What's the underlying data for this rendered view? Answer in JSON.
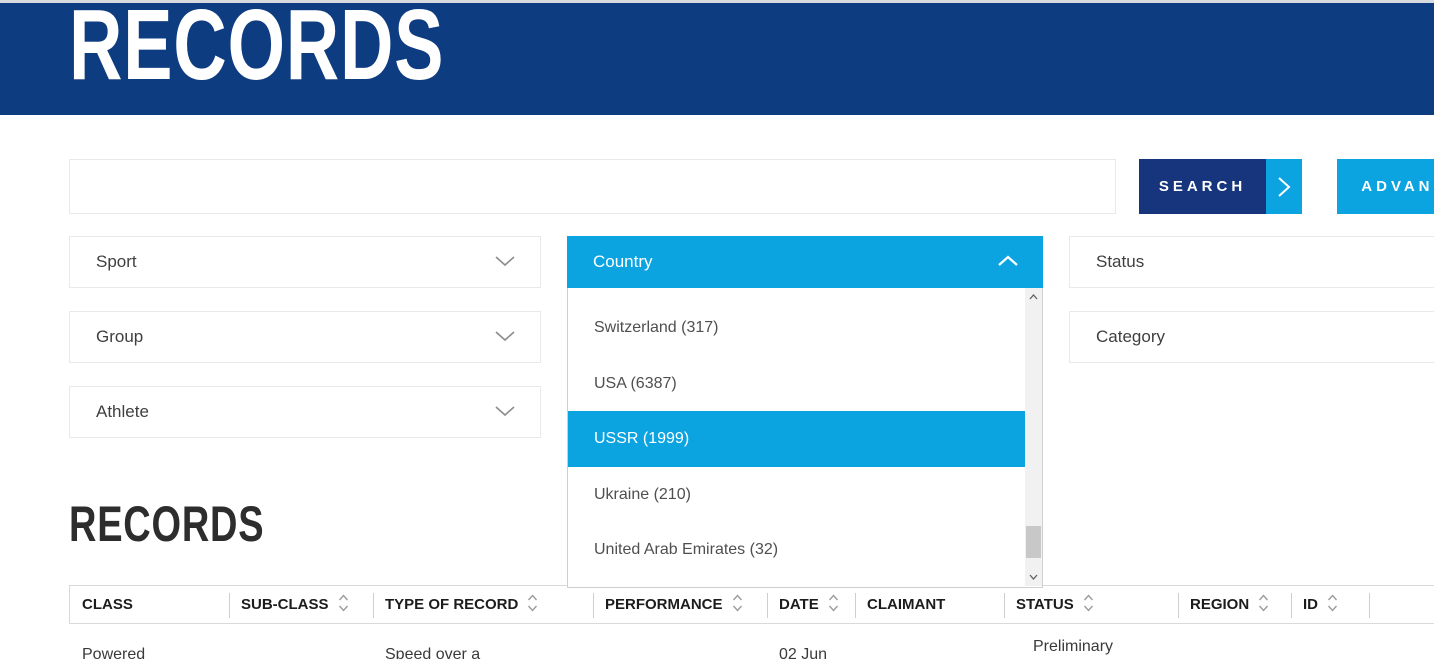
{
  "colors": {
    "top_edge": "#d7dade",
    "header_navy": "#0e3c80",
    "button_navy": "#17357d",
    "accent_blue": "#0ba3e0",
    "heading_dark": "#2d2d2d",
    "text_dark": "#3f3f3f",
    "border_light": "#e9e9e9",
    "table_border": "#d9d9d9"
  },
  "header": {
    "title": "RECORDS"
  },
  "search": {
    "input_value": "",
    "search_button": "SEARCH",
    "advanced_button": "ADVANCED SEARCH"
  },
  "filters": {
    "sport": "Sport",
    "group": "Group",
    "athlete": "Athlete",
    "country": "Country",
    "status": "Status",
    "category": "Category"
  },
  "country_dropdown": {
    "items": [
      {
        "label": "Switzerland (317)",
        "selected": false
      },
      {
        "label": "USA (6387)",
        "selected": false
      },
      {
        "label": "USSR (1999)",
        "selected": true
      },
      {
        "label": "Ukraine (210)",
        "selected": false
      },
      {
        "label": "United Arab Emirates (32)",
        "selected": false
      }
    ]
  },
  "records_section": {
    "title": "RECORDS"
  },
  "records_table": {
    "columns": [
      {
        "label": "CLASS",
        "sortable": false
      },
      {
        "label": "SUB-CLASS",
        "sortable": true
      },
      {
        "label": "TYPE OF RECORD",
        "sortable": true
      },
      {
        "label": "PERFORMANCE",
        "sortable": true
      },
      {
        "label": "DATE",
        "sortable": true
      },
      {
        "label": "CLAIMANT",
        "sortable": false
      },
      {
        "label": "STATUS",
        "sortable": true
      },
      {
        "label": "REGION",
        "sortable": true
      },
      {
        "label": "ID",
        "sortable": true
      }
    ],
    "partial_row": [
      "Powered",
      "",
      "Speed over a",
      "",
      "02 Jun",
      "",
      "Preliminary",
      "",
      ""
    ]
  }
}
